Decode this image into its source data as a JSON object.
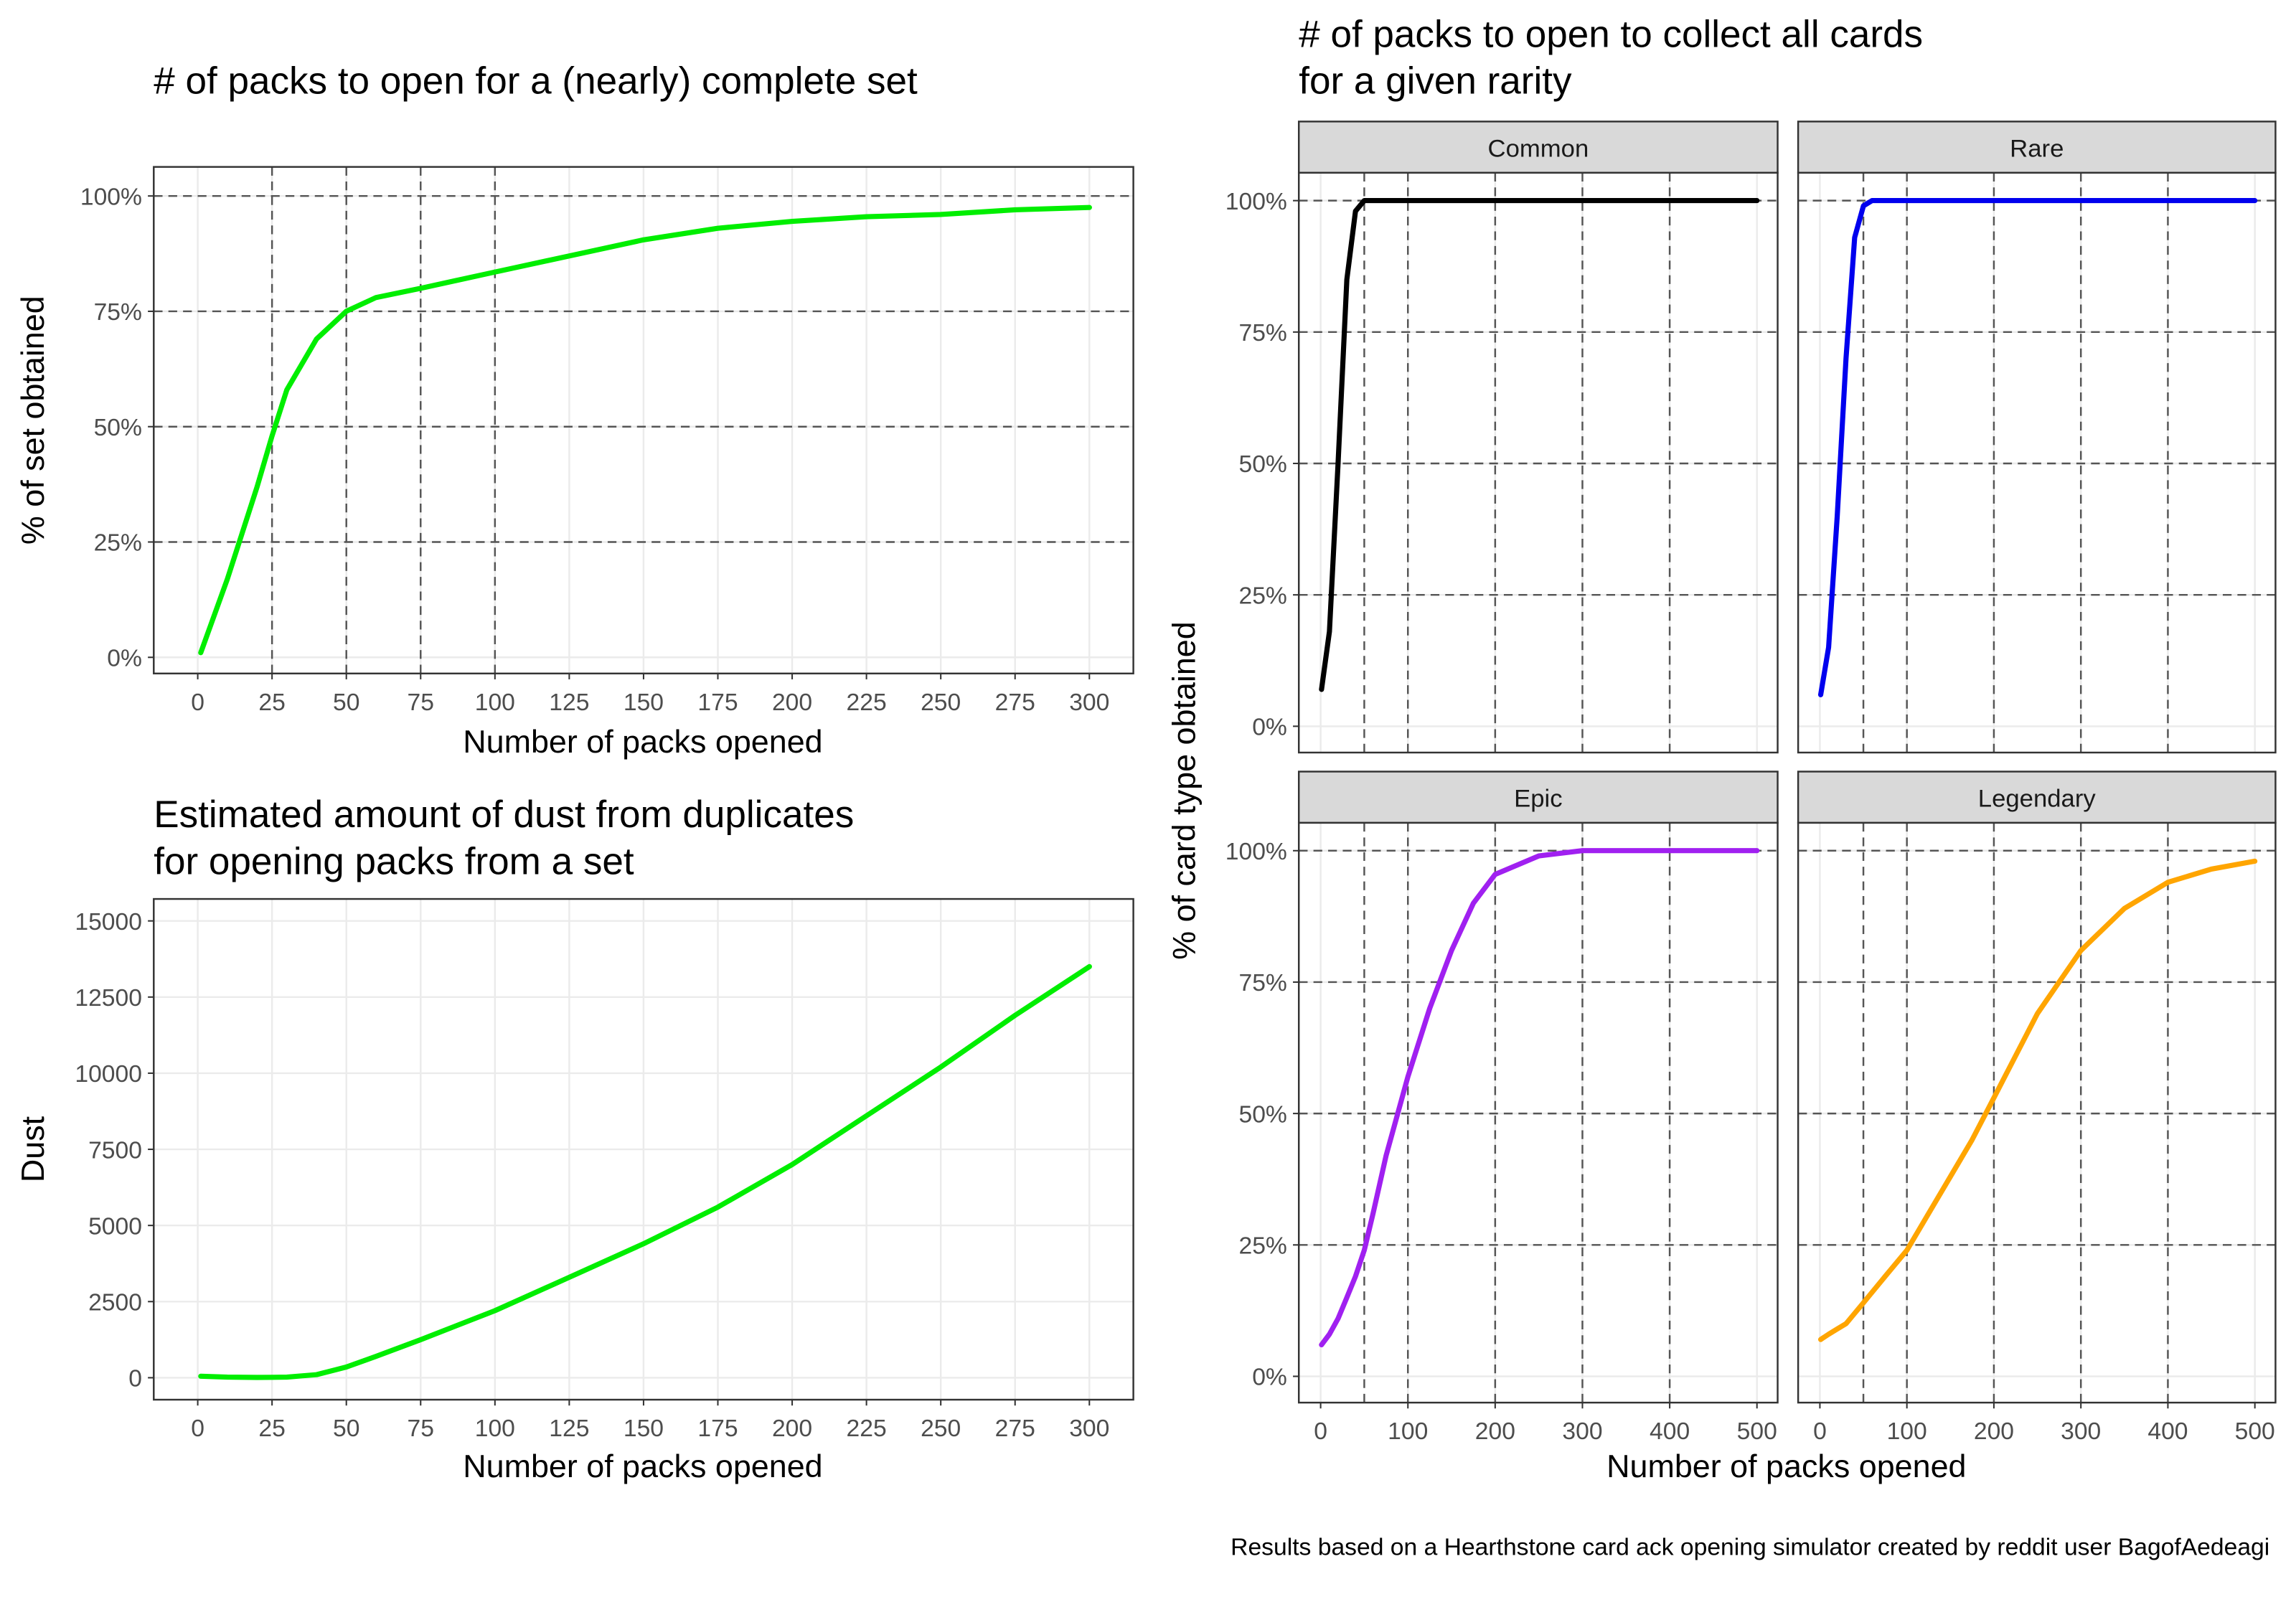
{
  "chart_data": [
    {
      "type": "line",
      "title": [
        "# of packs to open for a (nearly) complete set"
      ],
      "x_label": "Number of packs opened",
      "y_label": "% of set obtained",
      "x": [
        1,
        10,
        20,
        25,
        30,
        40,
        50,
        60,
        75,
        100,
        125,
        150,
        175,
        200,
        225,
        250,
        275,
        300
      ],
      "values": [
        1,
        17,
        37,
        48,
        58,
        69,
        75,
        78,
        80,
        83.5,
        87,
        90.5,
        93,
        94.5,
        95.5,
        96,
        97,
        97.5
      ],
      "color": "#00ee00",
      "xlim": [
        -14.8,
        314.8
      ],
      "ylim": [
        -3.5,
        106.3
      ],
      "xticks": [
        0,
        25,
        50,
        75,
        100,
        125,
        150,
        175,
        200,
        225,
        250,
        275,
        300
      ],
      "yticks": [
        {
          "value": 0,
          "label": "0%"
        },
        {
          "value": 25,
          "label": "25%"
        },
        {
          "value": 50,
          "label": "50%"
        },
        {
          "value": 75,
          "label": "75%"
        },
        {
          "value": 100,
          "label": "100%"
        }
      ],
      "vlines": [
        25,
        50,
        75,
        100
      ],
      "hlines": [
        25,
        50,
        75,
        100
      ],
      "grid": true
    },
    {
      "type": "line",
      "title": [
        "Estimated amount of dust from duplicates",
        "for opening packs from a set"
      ],
      "x_label": "Number of packs opened",
      "y_label": "Dust",
      "x": [
        1,
        10,
        20,
        30,
        40,
        50,
        60,
        75,
        100,
        125,
        150,
        175,
        200,
        225,
        250,
        275,
        300
      ],
      "values": [
        50,
        20,
        10,
        20,
        100,
        350,
        700,
        1250,
        2200,
        3300,
        4400,
        5600,
        7000,
        8600,
        10200,
        11900,
        13500
      ],
      "color": "#00ee00",
      "xlim": [
        -14.8,
        314.8
      ],
      "ylim": [
        -721,
        15721
      ],
      "xticks": [
        0,
        25,
        50,
        75,
        100,
        125,
        150,
        175,
        200,
        225,
        250,
        275,
        300
      ],
      "yticks": [
        0,
        2500,
        5000,
        7500,
        10000,
        12500,
        15000
      ],
      "grid": true
    },
    {
      "type": "line",
      "title": [
        "# of packs to open to collect all cards",
        "for a given rarity"
      ],
      "x_label": "Number of packs opened",
      "y_label": "% of card type obtained",
      "x": [
        1,
        10,
        20,
        30,
        40,
        50,
        60,
        75,
        100,
        125,
        150,
        175,
        200,
        250,
        300,
        350,
        400,
        450,
        500
      ],
      "facets": [
        {
          "name": "Common",
          "color": "#000000",
          "values": [
            7,
            18,
            50,
            85,
            98,
            100,
            100,
            100,
            100,
            100,
            100,
            100,
            100,
            100,
            100,
            100,
            100,
            100,
            100
          ]
        },
        {
          "name": "Rare",
          "color": "#0000ee",
          "values": [
            6,
            15,
            40,
            70,
            93,
            99,
            100,
            100,
            100,
            100,
            100,
            100,
            100,
            100,
            100,
            100,
            100,
            100,
            100
          ]
        },
        {
          "name": "Epic",
          "color": "#a020f0",
          "values": [
            6,
            8,
            11,
            15,
            19,
            24,
            31,
            42,
            57,
            70,
            81,
            90,
            95.5,
            99,
            100,
            100,
            100,
            100,
            100
          ]
        },
        {
          "name": "Legendary",
          "color": "#ffa500",
          "values": [
            7,
            8,
            9,
            10,
            12,
            14,
            16,
            19,
            24,
            31,
            38,
            45,
            53,
            69,
            81,
            89,
            94,
            96.5,
            98
          ]
        }
      ],
      "xlim": [
        -25,
        523.7
      ],
      "ylim": [
        -5,
        105.3
      ],
      "xticks": [
        0,
        100,
        200,
        300,
        400,
        500
      ],
      "yticks": [
        {
          "value": 0,
          "label": "0%"
        },
        {
          "value": 25,
          "label": "25%"
        },
        {
          "value": 50,
          "label": "50%"
        },
        {
          "value": 75,
          "label": "75%"
        },
        {
          "value": 100,
          "label": "100%"
        }
      ],
      "vlines": [
        50,
        100,
        200,
        300,
        400
      ],
      "hlines": [
        25,
        50,
        75,
        100
      ],
      "grid": true
    }
  ],
  "caption": "Results based on a Hearthstone card ack opening simulator created by reddit user BagofAedeagi"
}
